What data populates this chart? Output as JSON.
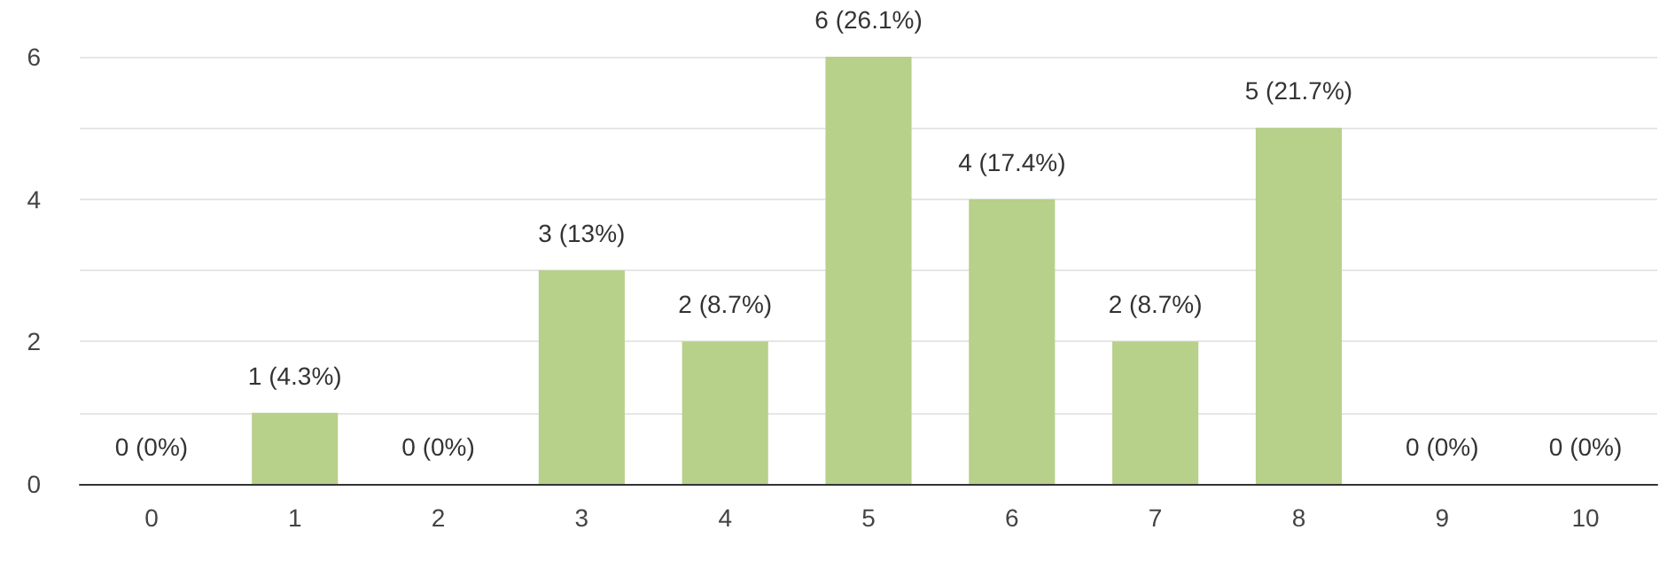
{
  "chart_data": {
    "type": "bar",
    "categories": [
      "0",
      "1",
      "2",
      "3",
      "4",
      "5",
      "6",
      "7",
      "8",
      "9",
      "10"
    ],
    "values": [
      0,
      1,
      0,
      3,
      2,
      6,
      4,
      2,
      5,
      0,
      0
    ],
    "value_labels": [
      "0 (0%)",
      "1 (4.3%)",
      "0 (0%)",
      "3 (13%)",
      "2 (8.7%)",
      "6 (26.1%)",
      "4 (17.4%)",
      "2 (8.7%)",
      "5 (21.7%)",
      "0 (0%)",
      "0 (0%)"
    ],
    "color": "#b7d08a",
    "ylim": [
      0,
      6
    ],
    "yticks": [
      0,
      {
        "value": 1,
        "label": null
      },
      2,
      {
        "value": 3,
        "label": null
      },
      4,
      {
        "value": 5,
        "label": null
      },
      6
    ],
    "grid": "y"
  }
}
